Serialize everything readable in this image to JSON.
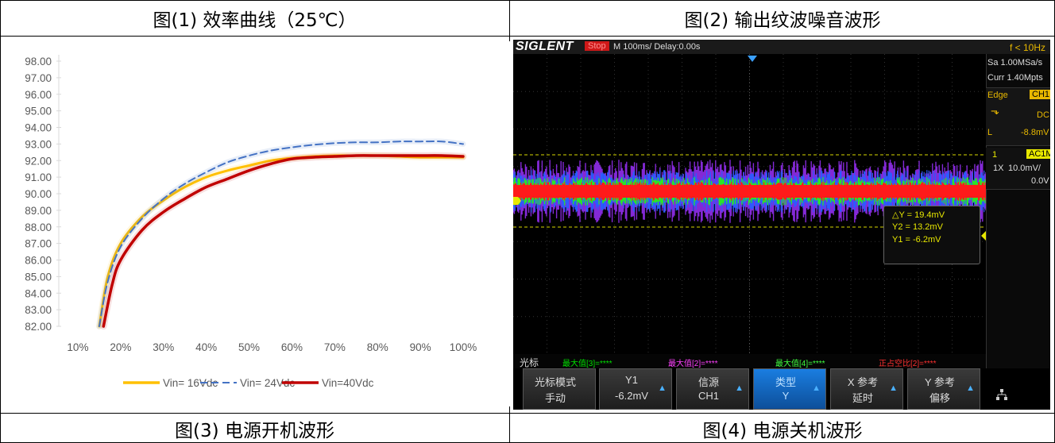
{
  "cells": {
    "fig1_title": "图(1)  效率曲线（25℃）",
    "fig2_title": "图(2)  输出纹波噪音波形",
    "fig3_title": "图(3)  电源开机波形",
    "fig4_title": "图(4)  电源关机波形"
  },
  "chart_data": {
    "type": "line",
    "xlabel": "",
    "ylabel": "",
    "x_ticks": [
      "10%",
      "20%",
      "30%",
      "40%",
      "50%",
      "60%",
      "70%",
      "80%",
      "90%",
      "100%"
    ],
    "y_ticks": [
      "82.00",
      "83.00",
      "84.00",
      "85.00",
      "86.00",
      "87.00",
      "88.00",
      "89.00",
      "90.00",
      "91.00",
      "92.00",
      "93.00",
      "94.00",
      "95.00",
      "96.00",
      "97.00",
      "98.00"
    ],
    "xlim": [
      0.05,
      1.05
    ],
    "ylim": [
      82,
      98
    ],
    "legend_position": "bottom",
    "series": [
      {
        "name": "Vin= 16Vdc",
        "color": "#ffc000",
        "dash": "solid",
        "x": [
          0.15,
          0.17,
          0.2,
          0.25,
          0.3,
          0.35,
          0.4,
          0.45,
          0.5,
          0.55,
          0.6,
          0.65,
          0.7,
          0.75,
          0.8,
          0.85,
          0.9,
          0.95,
          1.0
        ],
        "y": [
          82.0,
          85.0,
          87.0,
          88.6,
          89.6,
          90.4,
          91.0,
          91.4,
          91.7,
          92.0,
          92.15,
          92.25,
          92.3,
          92.3,
          92.3,
          92.25,
          92.2,
          92.2,
          92.2
        ]
      },
      {
        "name": "Vin= 24Vdc",
        "color": "#4472c4",
        "dash": "dashed",
        "x": [
          0.15,
          0.17,
          0.2,
          0.25,
          0.3,
          0.35,
          0.4,
          0.45,
          0.5,
          0.55,
          0.6,
          0.65,
          0.7,
          0.75,
          0.8,
          0.85,
          0.9,
          0.95,
          1.0
        ],
        "y": [
          82.0,
          84.7,
          86.8,
          88.5,
          89.7,
          90.6,
          91.3,
          91.9,
          92.3,
          92.6,
          92.8,
          92.95,
          93.05,
          93.1,
          93.1,
          93.15,
          93.15,
          93.15,
          93.0
        ]
      },
      {
        "name": "Vin=40Vdc",
        "color": "#c00000",
        "dash": "solid",
        "x": [
          0.16,
          0.18,
          0.2,
          0.25,
          0.3,
          0.35,
          0.4,
          0.45,
          0.5,
          0.55,
          0.6,
          0.65,
          0.7,
          0.75,
          0.8,
          0.85,
          0.9,
          0.95,
          1.0
        ],
        "y": [
          82.0,
          84.5,
          86.0,
          87.8,
          88.9,
          89.7,
          90.4,
          90.9,
          91.4,
          91.8,
          92.1,
          92.2,
          92.25,
          92.3,
          92.3,
          92.3,
          92.3,
          92.3,
          92.25
        ]
      }
    ]
  },
  "osc": {
    "brand": "SIGLENT",
    "state": "Stop",
    "timebase": "M 100ms/  Delay:0.00s",
    "trigger_freq": "f < 10Hz",
    "sample_rate": "Sa 1.00MSa/s",
    "curr_points": "Curr 1.40Mpts",
    "trig_type": "Edge",
    "trig_source": "CH1",
    "trig_slope_icon": "falling-edge-icon",
    "trig_coupling": "DC",
    "trig_level_label": "L",
    "trig_level": "-8.8mV",
    "ch_num": "1",
    "ch_coupling": "AC1M",
    "ch_probe": "1X",
    "ch_scale": "10.0mV/",
    "ch_offset": "0.0V",
    "measure": {
      "dy": "△Y = 19.4mV",
      "y2": "Y2 = 13.2mV",
      "y1": "Y1 = -6.2mV"
    },
    "status_label": "光标",
    "status_items": [
      "最大值[3]=****",
      "最大值[2]=****",
      "最大值[4]=****",
      "正占空比[2]=****"
    ],
    "status_colors": [
      "#00e000",
      "#ff40ff",
      "#40ff40",
      "#ff3030"
    ],
    "softkeys": [
      {
        "l1": "光标模式",
        "l2": "手动"
      },
      {
        "l1": "Y1",
        "l2": "-6.2mV"
      },
      {
        "l1": "信源",
        "l2": "CH1"
      },
      {
        "l1": "类型",
        "l2": "Y"
      },
      {
        "l1": "X 参考",
        "l2": "延时"
      },
      {
        "l1": "Y 参考",
        "l2": "偏移"
      }
    ],
    "network_icon": "network-icon",
    "colors": {
      "purple": "#8a2be2",
      "blue": "#2a5cff",
      "green": "#28e628",
      "red": "#ff1a1a",
      "cursor": "#d8d800"
    }
  }
}
